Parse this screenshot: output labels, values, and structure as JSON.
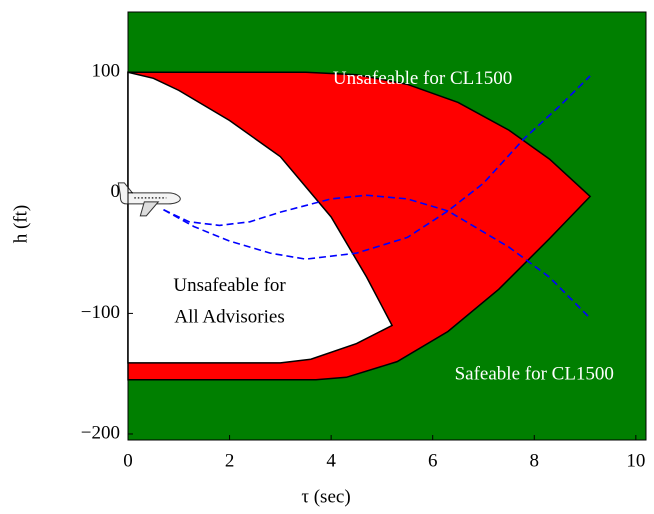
{
  "chart_data": {
    "type": "region",
    "xlabel": "τ (sec)",
    "ylabel": "h (ft)",
    "xlim": [
      0,
      10.2
    ],
    "ylim": [
      -205,
      150
    ],
    "xticks": [
      0,
      2,
      4,
      6,
      8,
      10
    ],
    "yticks": [
      {
        "value": 100,
        "label": "100"
      },
      {
        "value": 0,
        "label": "0"
      },
      {
        "value": -100,
        "label": "−100"
      },
      {
        "value": -200,
        "label": "−200"
      }
    ],
    "background": "#007f00",
    "regions": [
      {
        "color": "#ff0000",
        "x": [
          0,
          3.5,
          4.5,
          5.5,
          6.5,
          7.5,
          8.3,
          9.1,
          8.3,
          7.3,
          6.3,
          5.3,
          4.3,
          3.7,
          0
        ],
        "y": [
          100,
          100,
          98,
          90,
          75,
          52,
          28,
          -3,
          -38,
          -80,
          -115,
          -140,
          -153,
          -155,
          -155
        ]
      },
      {
        "color": "#ffffff",
        "x": [
          0,
          0.5,
          1,
          2,
          3,
          4,
          4.7,
          5.2,
          4.5,
          3.6,
          3,
          0
        ],
        "y": [
          100,
          95,
          85,
          60,
          30,
          -20,
          -70,
          -110,
          -125,
          -138,
          -141,
          -141
        ]
      }
    ],
    "series": [
      {
        "color": "#0000ff",
        "x": [
          0.7,
          1.2,
          1.8,
          2.4,
          3,
          4,
          4.7,
          5.5,
          6.3,
          7.5,
          8.3,
          9.1
        ],
        "y": [
          -14,
          -24,
          -27,
          -24,
          -16,
          -5,
          -2,
          -5,
          -15,
          -45,
          -70,
          -104
        ]
      },
      {
        "color": "#0000ff",
        "x": [
          0.7,
          1.3,
          2,
          2.8,
          3.5,
          4.5,
          5.5,
          6.3,
          7,
          7.8,
          8.5,
          9.1
        ],
        "y": [
          -14,
          -28,
          -40,
          -50,
          -55,
          -50,
          -37,
          -15,
          8,
          45,
          72,
          97
        ]
      }
    ],
    "annotations": [
      {
        "text": "Unsafeable for CL1500",
        "x": 5.8,
        "y": 94,
        "color": "#ffffff"
      },
      {
        "text": "Unsafeable for",
        "x": 2,
        "y": -78,
        "color": "#000000"
      },
      {
        "text": "All Advisories",
        "x": 2,
        "y": -104,
        "color": "#000000"
      },
      {
        "text": "Safeable for CL1500",
        "x": 8.0,
        "y": -151,
        "color": "#ffffff"
      }
    ]
  }
}
